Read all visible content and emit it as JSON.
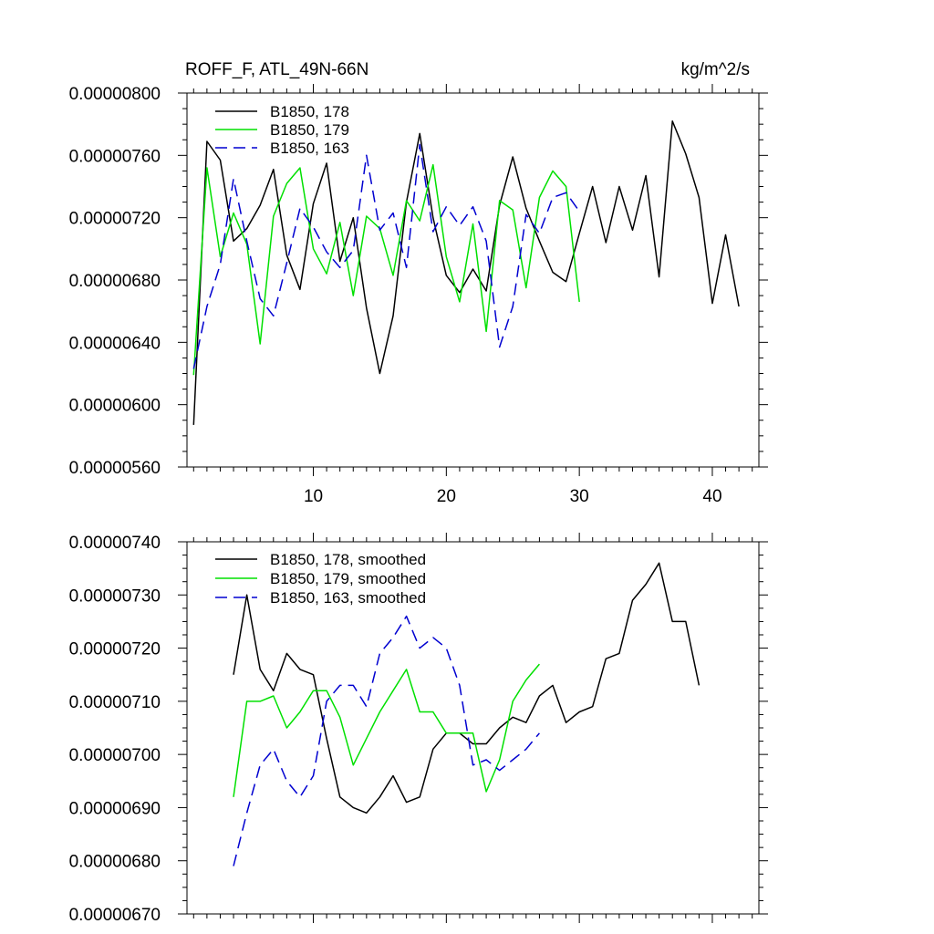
{
  "figure": {
    "title_left": "ROFF_F, ATL_49N-66N",
    "title_right": "kg/m^2/s"
  },
  "colors": {
    "s178": "#000000",
    "s179": "#00e000",
    "s163": "#0000d0"
  },
  "chart_data": [
    {
      "type": "line",
      "title": "ROFF_F, ATL_49N-66N",
      "units": "kg/m^2/s",
      "xlim": [
        0.5,
        43.5
      ],
      "ylim": [
        5.6e-06,
        8e-06
      ],
      "x_ticks": [
        10,
        20,
        30,
        40
      ],
      "x_tick_labels": [
        "10",
        "20",
        "30",
        "40"
      ],
      "y_ticks": [
        5.6e-06,
        6e-06,
        6.4e-06,
        6.8e-06,
        7.2e-06,
        7.6e-06,
        8e-06
      ],
      "y_tick_labels": [
        "0.00000560",
        "0.00000600",
        "0.00000640",
        "0.00000680",
        "0.00000720",
        "0.00000760",
        "0.00000800"
      ],
      "series": [
        {
          "name": "B1850, 178",
          "color_key": "s178",
          "dash": "solid",
          "x": [
            1,
            2,
            3,
            4,
            5,
            6,
            7,
            8,
            9,
            10,
            11,
            12,
            13,
            14,
            15,
            16,
            17,
            18,
            19,
            20,
            21,
            22,
            23,
            24,
            25,
            26,
            27,
            28,
            29,
            30,
            31,
            32,
            33,
            34,
            35,
            36,
            37,
            38,
            39,
            40,
            41,
            42
          ],
          "values": [
            5.87e-06,
            7.69e-06,
            7.57e-06,
            7.05e-06,
            7.13e-06,
            7.28e-06,
            7.51e-06,
            6.96e-06,
            6.74e-06,
            7.29e-06,
            7.55e-06,
            6.92e-06,
            7.2e-06,
            6.62e-06,
            6.2e-06,
            6.57e-06,
            7.3e-06,
            7.74e-06,
            7.2e-06,
            6.83e-06,
            6.72e-06,
            6.87e-06,
            6.73e-06,
            7.28e-06,
            7.59e-06,
            7.26e-06,
            7.05e-06,
            6.85e-06,
            6.79e-06,
            7.1e-06,
            7.4e-06,
            7.04e-06,
            7.4e-06,
            7.12e-06,
            7.47e-06,
            6.82e-06,
            7.82e-06,
            7.61e-06,
            7.33e-06,
            6.65e-06,
            7.09e-06,
            6.63e-06
          ]
        },
        {
          "name": "B1850, 179",
          "color_key": "s179",
          "dash": "solid",
          "x": [
            1,
            2,
            3,
            4,
            5,
            6,
            7,
            8,
            9,
            10,
            11,
            12,
            13,
            14,
            15,
            16,
            17,
            18,
            19,
            20,
            21,
            22,
            23,
            24,
            25,
            26,
            27,
            28,
            29,
            30
          ],
          "values": [
            6.19e-06,
            7.52e-06,
            6.95e-06,
            7.23e-06,
            7.03e-06,
            6.39e-06,
            7.21e-06,
            7.42e-06,
            7.52e-06,
            7e-06,
            6.84e-06,
            7.17e-06,
            6.7e-06,
            7.21e-06,
            7.13e-06,
            6.83e-06,
            7.31e-06,
            7.18e-06,
            7.54e-06,
            6.95e-06,
            6.66e-06,
            7.16e-06,
            6.47e-06,
            7.31e-06,
            7.25e-06,
            6.75e-06,
            7.33e-06,
            7.5e-06,
            7.4e-06,
            6.66e-06
          ]
        },
        {
          "name": "B1850, 163",
          "color_key": "s163",
          "dash": "dashed",
          "x": [
            1,
            2,
            3,
            4,
            5,
            6,
            7,
            8,
            9,
            10,
            11,
            12,
            13,
            14,
            15,
            16,
            17,
            18,
            19,
            20,
            21,
            22,
            23,
            24,
            25,
            26,
            27,
            28,
            29,
            30
          ],
          "values": [
            6.23e-06,
            6.63e-06,
            6.9e-06,
            7.45e-06,
            7.05e-06,
            6.68e-06,
            6.57e-06,
            6.91e-06,
            7.26e-06,
            7.14e-06,
            6.98e-06,
            6.88e-06,
            6.99e-06,
            7.6e-06,
            7.12e-06,
            7.23e-06,
            6.88e-06,
            7.67e-06,
            7.11e-06,
            7.27e-06,
            7.15e-06,
            7.27e-06,
            7.05e-06,
            6.37e-06,
            6.63e-06,
            7.22e-06,
            7.1e-06,
            7.33e-06,
            7.36e-06,
            7.24e-06
          ]
        }
      ]
    },
    {
      "type": "line",
      "title": "",
      "xlim": [
        0.5,
        43.5
      ],
      "ylim": [
        6.7e-06,
        7.4e-06
      ],
      "x_ticks": [
        10,
        20,
        30,
        40
      ],
      "x_tick_labels": [],
      "y_ticks": [
        6.7e-06,
        6.8e-06,
        6.9e-06,
        7e-06,
        7.1e-06,
        7.2e-06,
        7.3e-06,
        7.4e-06
      ],
      "y_tick_labels": [
        "0.00000670",
        "0.00000680",
        "0.00000690",
        "0.00000700",
        "0.00000710",
        "0.00000720",
        "0.00000730",
        "0.00000740"
      ],
      "series": [
        {
          "name": "B1850, 178, smoothed",
          "color_key": "s178",
          "dash": "solid",
          "x": [
            4,
            5,
            6,
            7,
            8,
            9,
            10,
            11,
            12,
            13,
            14,
            15,
            16,
            17,
            18,
            19,
            20,
            21,
            22,
            23,
            24,
            25,
            26,
            27,
            28,
            29,
            30,
            31,
            32,
            33,
            34,
            35,
            36,
            37,
            38,
            39
          ],
          "values": [
            7.15e-06,
            7.3e-06,
            7.16e-06,
            7.12e-06,
            7.19e-06,
            7.16e-06,
            7.15e-06,
            7.03e-06,
            6.92e-06,
            6.9e-06,
            6.89e-06,
            6.92e-06,
            6.96e-06,
            6.91e-06,
            6.92e-06,
            7.01e-06,
            7.04e-06,
            7.04e-06,
            7.02e-06,
            7.02e-06,
            7.05e-06,
            7.07e-06,
            7.06e-06,
            7.11e-06,
            7.13e-06,
            7.06e-06,
            7.08e-06,
            7.09e-06,
            7.18e-06,
            7.19e-06,
            7.29e-06,
            7.32e-06,
            7.36e-06,
            7.25e-06,
            7.25e-06,
            7.13e-06
          ]
        },
        {
          "name": "B1850, 179, smoothed",
          "color_key": "s179",
          "dash": "solid",
          "x": [
            4,
            5,
            6,
            7,
            8,
            9,
            10,
            11,
            12,
            13,
            14,
            15,
            16,
            17,
            18,
            19,
            20,
            21,
            22,
            23,
            24,
            25,
            26,
            27
          ],
          "values": [
            6.92e-06,
            7.1e-06,
            7.1e-06,
            7.11e-06,
            7.05e-06,
            7.08e-06,
            7.12e-06,
            7.12e-06,
            7.07e-06,
            6.98e-06,
            7.03e-06,
            7.08e-06,
            7.12e-06,
            7.16e-06,
            7.08e-06,
            7.08e-06,
            7.04e-06,
            7.04e-06,
            7.04e-06,
            6.93e-06,
            6.99e-06,
            7.1e-06,
            7.14e-06,
            7.17e-06
          ]
        },
        {
          "name": "B1850, 163, smoothed",
          "color_key": "s163",
          "dash": "dashed",
          "x": [
            4,
            5,
            6,
            7,
            8,
            9,
            10,
            11,
            12,
            13,
            14,
            15,
            16,
            17,
            18,
            19,
            20,
            21,
            22,
            23,
            24,
            25,
            26,
            27
          ],
          "values": [
            6.79e-06,
            6.89e-06,
            6.98e-06,
            7.01e-06,
            6.95e-06,
            6.92e-06,
            6.96e-06,
            7.1e-06,
            7.13e-06,
            7.13e-06,
            7.09e-06,
            7.19e-06,
            7.22e-06,
            7.26e-06,
            7.2e-06,
            7.22e-06,
            7.2e-06,
            7.13e-06,
            6.98e-06,
            6.99e-06,
            6.97e-06,
            6.99e-06,
            7.01e-06,
            7.04e-06
          ]
        }
      ]
    }
  ]
}
